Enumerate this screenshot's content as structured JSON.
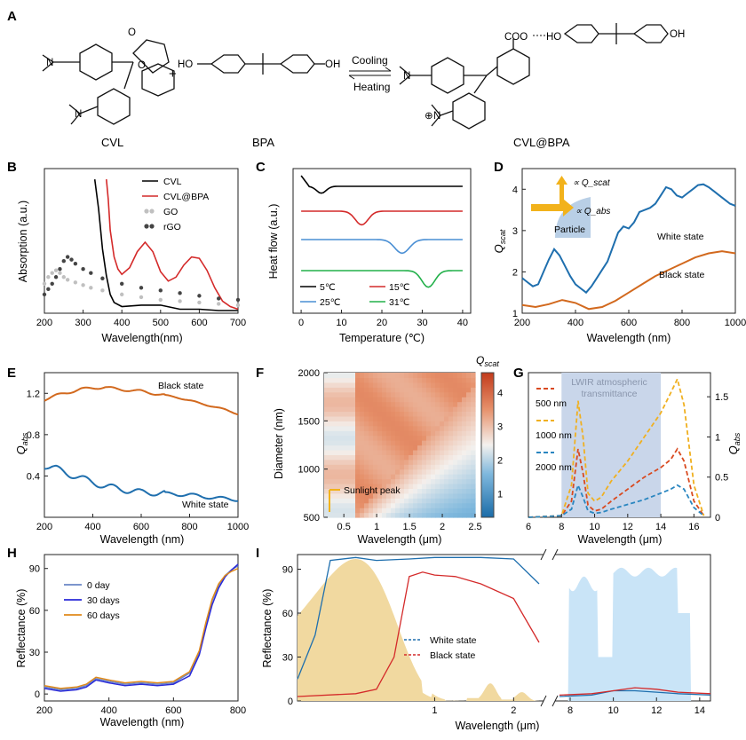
{
  "figure": {
    "panels": [
      "A",
      "B",
      "C",
      "D",
      "E",
      "F",
      "G",
      "H",
      "I"
    ]
  },
  "reaction": {
    "reactant1": "CVL",
    "reactant2": "BPA",
    "product": "CVL@BPA",
    "plus": "+",
    "forward": "Cooling",
    "reverse": "Heating",
    "atoms": {
      "o": "O",
      "n": "N",
      "ho": "HO",
      "oh": "OH",
      "coo": "COO",
      "nplus": "N",
      "plus_sign": "⊕"
    }
  },
  "chart_data": [
    {
      "panel": "B",
      "type": "line",
      "xlabel": "Wavelength(nm)",
      "ylabel": "Absorption (a.u.)",
      "xlim": [
        200,
        700
      ],
      "xticks": [
        200,
        300,
        400,
        500,
        600,
        700
      ],
      "legend": [
        "CVL",
        "CVL@BPA",
        "GO",
        "rGO"
      ],
      "series": [
        {
          "name": "CVL",
          "color": "#000000",
          "style": "line",
          "x": [
            330,
            340,
            350,
            360,
            370,
            380,
            400,
            450,
            500,
            550,
            600,
            650,
            700
          ],
          "y": [
            1.0,
            0.78,
            0.48,
            0.28,
            0.14,
            0.08,
            0.05,
            0.06,
            0.06,
            0.03,
            0.03,
            0.02,
            0.02
          ]
        },
        {
          "name": "CVL@BPA",
          "color": "#d42a2a",
          "style": "line",
          "x": [
            360,
            365,
            370,
            380,
            390,
            400,
            420,
            440,
            460,
            480,
            500,
            520,
            540,
            560,
            580,
            600,
            620,
            640,
            660,
            680,
            700
          ],
          "y": [
            1.0,
            0.85,
            0.62,
            0.42,
            0.33,
            0.29,
            0.34,
            0.46,
            0.53,
            0.46,
            0.31,
            0.24,
            0.27,
            0.36,
            0.42,
            0.41,
            0.32,
            0.19,
            0.09,
            0.05,
            0.03
          ]
        },
        {
          "name": "GO",
          "color": "#c0c0c0",
          "style": "markers",
          "x": [
            200,
            210,
            220,
            230,
            240,
            250,
            260,
            280,
            300,
            320,
            350,
            400,
            450,
            500,
            550,
            600,
            650,
            700
          ],
          "y": [
            0.22,
            0.27,
            0.3,
            0.32,
            0.3,
            0.27,
            0.25,
            0.23,
            0.21,
            0.19,
            0.17,
            0.14,
            0.12,
            0.1,
            0.09,
            0.08,
            0.07,
            0.06
          ]
        },
        {
          "name": "rGO",
          "color": "#444444",
          "style": "markers",
          "x": [
            200,
            210,
            220,
            230,
            240,
            250,
            260,
            270,
            280,
            300,
            320,
            350,
            400,
            450,
            500,
            550,
            600,
            650,
            700
          ],
          "y": [
            0.14,
            0.18,
            0.22,
            0.27,
            0.33,
            0.39,
            0.42,
            0.4,
            0.37,
            0.33,
            0.3,
            0.26,
            0.22,
            0.19,
            0.17,
            0.15,
            0.13,
            0.11,
            0.1
          ]
        }
      ]
    },
    {
      "panel": "C",
      "type": "line",
      "xlabel": "Temperature (℃)",
      "ylabel": "Heat flow (a.u.)",
      "xlim": [
        -2,
        42
      ],
      "xticks": [
        0,
        10,
        20,
        30,
        40
      ],
      "legend": [
        "5℃",
        "15℃",
        "25℃",
        "31℃"
      ],
      "series": [
        {
          "name": "5℃",
          "color": "#000000",
          "offset": 4,
          "peak": 5,
          "depth": 0.35,
          "width": 1.2
        },
        {
          "name": "15℃",
          "color": "#d42a2a",
          "offset": 3,
          "peak": 15,
          "depth": 0.7,
          "width": 1.6
        },
        {
          "name": "25℃",
          "color": "#4a8fd4",
          "offset": 2,
          "peak": 25,
          "depth": 0.7,
          "width": 1.8
        },
        {
          "name": "31℃",
          "color": "#22b04a",
          "offset": 1,
          "peak": 31.5,
          "depth": 0.85,
          "width": 1.6
        }
      ]
    },
    {
      "panel": "D",
      "type": "line",
      "xlabel": "Wavelength (nm)",
      "ylabel": "Q_scat",
      "xlim": [
        200,
        1000
      ],
      "ylim": [
        1,
        4.5
      ],
      "xticks": [
        200,
        400,
        600,
        800,
        1000
      ],
      "yticks": [
        1,
        2,
        3,
        4
      ],
      "annotations": [
        "White state",
        "Black state",
        "Particle",
        "∝ Q_scat",
        "∝ Q_abs"
      ],
      "series": [
        {
          "name": "White state",
          "color": "#1f6fae",
          "x": [
            200,
            220,
            240,
            260,
            280,
            300,
            320,
            340,
            360,
            380,
            400,
            420,
            440,
            460,
            480,
            500,
            520,
            540,
            560,
            580,
            600,
            620,
            640,
            660,
            680,
            700,
            720,
            740,
            760,
            780,
            800,
            820,
            840,
            860,
            880,
            900,
            920,
            940,
            960,
            980,
            1000
          ],
          "y": [
            1.85,
            1.75,
            1.65,
            1.7,
            2.0,
            2.3,
            2.55,
            2.4,
            2.15,
            1.9,
            1.7,
            1.6,
            1.5,
            1.65,
            1.85,
            2.05,
            2.25,
            2.6,
            2.95,
            3.1,
            3.05,
            3.2,
            3.45,
            3.5,
            3.55,
            3.65,
            3.85,
            4.05,
            4.0,
            3.85,
            3.8,
            3.9,
            4.0,
            4.1,
            4.12,
            4.05,
            3.95,
            3.85,
            3.75,
            3.65,
            3.6
          ]
        },
        {
          "name": "Black state",
          "color": "#d2691e",
          "x": [
            200,
            250,
            300,
            350,
            400,
            450,
            500,
            550,
            600,
            650,
            700,
            750,
            800,
            850,
            900,
            950,
            1000
          ],
          "y": [
            1.2,
            1.15,
            1.22,
            1.32,
            1.25,
            1.1,
            1.15,
            1.3,
            1.5,
            1.7,
            1.9,
            2.05,
            2.2,
            2.35,
            2.45,
            2.5,
            2.45
          ]
        }
      ]
    },
    {
      "panel": "E",
      "type": "line",
      "xlabel": "Wavelength (nm)",
      "ylabel": "Q_abs",
      "xlim": [
        200,
        1000
      ],
      "ylim": [
        0,
        1.4
      ],
      "xticks": [
        200,
        400,
        600,
        800,
        1000
      ],
      "yticks": [
        0.4,
        0.8,
        1.2
      ],
      "annotations": [
        "Black state",
        "White state"
      ],
      "series": [
        {
          "name": "Black state",
          "color": "#d2691e",
          "x": [
            200,
            250,
            300,
            350,
            400,
            450,
            500,
            550,
            600,
            650,
            700,
            750,
            800,
            850,
            900,
            950,
            1000
          ],
          "y": [
            1.14,
            1.18,
            1.21,
            1.24,
            1.25,
            1.26,
            1.24,
            1.23,
            1.22,
            1.2,
            1.18,
            1.16,
            1.13,
            1.1,
            1.07,
            1.04,
            1.0
          ]
        },
        {
          "name": "White state",
          "color": "#1f6fae",
          "x": [
            200,
            250,
            300,
            350,
            400,
            450,
            500,
            550,
            600,
            650,
            700,
            750,
            800,
            850,
            900,
            950,
            1000
          ],
          "y": [
            0.5,
            0.47,
            0.42,
            0.38,
            0.34,
            0.3,
            0.28,
            0.26,
            0.24,
            0.24,
            0.23,
            0.22,
            0.22,
            0.2,
            0.19,
            0.18,
            0.17
          ]
        }
      ]
    },
    {
      "panel": "F",
      "type": "heatmap",
      "xlabel": "Wavelength (μm)",
      "ylabel": "Diameter (nm)",
      "colorbar_label": "Q_scat",
      "xlim": [
        0.2,
        2.5
      ],
      "ylim": [
        500,
        2000
      ],
      "xticks": [
        0.5,
        1,
        1.5,
        2,
        2.5
      ],
      "yticks": [
        500,
        1000,
        1500,
        2000
      ],
      "cbar_ticks": [
        1,
        2,
        3,
        4
      ],
      "annotation": "Sunlight peak"
    },
    {
      "panel": "G",
      "type": "line",
      "xlabel": "Wavelength (μm)",
      "ylabel": "Q_abs",
      "xlim": [
        6,
        17
      ],
      "ylim": [
        0,
        1.8
      ],
      "xticks": [
        6,
        8,
        10,
        12,
        14,
        16
      ],
      "yticks": [
        0,
        0.5,
        1,
        1.5
      ],
      "band_label": [
        "LWIR atmospheric",
        "transmittance"
      ],
      "band": [
        8,
        14
      ],
      "legend": [
        "500 nm",
        "1000 nm",
        "2000 nm"
      ],
      "series": [
        {
          "name": "500 nm",
          "color": "#d9491f",
          "x": [
            6,
            8,
            8.6,
            9,
            9.3,
            9.6,
            10,
            10.4,
            11,
            12,
            13,
            14,
            14.6,
            15,
            15.4,
            16,
            16.6
          ],
          "y": [
            0,
            0.02,
            0.2,
            0.85,
            0.55,
            0.15,
            0.08,
            0.1,
            0.2,
            0.35,
            0.5,
            0.62,
            0.72,
            0.85,
            0.7,
            0.2,
            0.02
          ]
        },
        {
          "name": "1000 nm",
          "color": "#f0b020",
          "x": [
            6,
            8,
            8.6,
            9,
            9.3,
            9.6,
            10,
            10.4,
            11,
            12,
            13,
            14,
            14.6,
            15,
            15.4,
            16,
            16.6
          ],
          "y": [
            0,
            0.02,
            0.4,
            1.45,
            1.0,
            0.3,
            0.2,
            0.25,
            0.45,
            0.7,
            1.0,
            1.3,
            1.55,
            1.72,
            1.4,
            0.4,
            0.02
          ]
        },
        {
          "name": "2000 nm",
          "color": "#2a86c0",
          "x": [
            6,
            8,
            8.6,
            9,
            9.3,
            9.6,
            10,
            10.4,
            11,
            12,
            13,
            14,
            14.6,
            15,
            15.4,
            16,
            16.6
          ],
          "y": [
            0,
            0.02,
            0.1,
            0.4,
            0.25,
            0.08,
            0.05,
            0.06,
            0.1,
            0.16,
            0.22,
            0.3,
            0.35,
            0.4,
            0.35,
            0.12,
            0.02
          ]
        }
      ]
    },
    {
      "panel": "H",
      "type": "line",
      "xlabel": "Wavelength (nm)",
      "ylabel": "Reflectance (%)",
      "xlim": [
        200,
        800
      ],
      "ylim": [
        -5,
        100
      ],
      "xticks": [
        200,
        400,
        600,
        800
      ],
      "yticks": [
        0,
        30,
        60,
        90
      ],
      "legend": [
        "0 day",
        "30 days",
        "60 days"
      ],
      "series": [
        {
          "name": "0 day",
          "color": "#6a86c6",
          "x": [
            200,
            250,
            300,
            330,
            360,
            400,
            450,
            500,
            550,
            600,
            650,
            680,
            700,
            720,
            740,
            760,
            780,
            800
          ],
          "y": [
            5,
            3,
            4,
            6,
            11,
            9,
            7,
            8,
            7,
            8,
            15,
            30,
            50,
            67,
            78,
            85,
            89,
            92
          ]
        },
        {
          "name": "30 days",
          "color": "#2a2ad8",
          "x": [
            200,
            250,
            300,
            330,
            360,
            400,
            450,
            500,
            550,
            600,
            650,
            680,
            700,
            720,
            740,
            760,
            780,
            800
          ],
          "y": [
            4,
            2,
            3,
            5,
            10,
            8,
            6,
            7,
            6,
            7,
            13,
            28,
            47,
            64,
            76,
            84,
            89,
            93
          ]
        },
        {
          "name": "60 days",
          "color": "#e08a1a",
          "x": [
            200,
            250,
            300,
            330,
            360,
            400,
            450,
            500,
            550,
            600,
            650,
            680,
            700,
            720,
            740,
            760,
            780,
            800
          ],
          "y": [
            6,
            4,
            5,
            7,
            12,
            10,
            8,
            9,
            8,
            9,
            16,
            31,
            51,
            68,
            79,
            85,
            88,
            90
          ]
        }
      ]
    },
    {
      "panel": "I",
      "type": "line",
      "xlabel": "Wavelength (μm)",
      "ylabel": "Reflectance (%)",
      "ylim": [
        0,
        100
      ],
      "xticks_left": [
        1,
        2
      ],
      "xticks_right": [
        8,
        10,
        12,
        14
      ],
      "yticks": [
        0,
        30,
        60,
        90
      ],
      "legend": [
        "White state",
        "Black state"
      ],
      "series": [
        {
          "name": "White state",
          "color": "#1f6fae",
          "x": [
            0.3,
            0.35,
            0.4,
            0.5,
            0.6,
            0.8,
            1.0,
            1.5,
            2.0,
            2.5
          ],
          "y": [
            15,
            45,
            96,
            98,
            96,
            97,
            98,
            98,
            97,
            80
          ],
          "x_ir": [
            7.5,
            9,
            10,
            11,
            12,
            13,
            14.5
          ],
          "y_ir": [
            3,
            4,
            7,
            7,
            6,
            5,
            4
          ]
        },
        {
          "name": "Black state",
          "color": "#d42a2a",
          "x": [
            0.3,
            0.5,
            0.6,
            0.7,
            0.8,
            0.9,
            1.0,
            1.2,
            1.5,
            2.0,
            2.5
          ],
          "y": [
            3,
            5,
            8,
            30,
            85,
            88,
            86,
            85,
            80,
            70,
            40
          ],
          "x_ir": [
            7.5,
            9,
            10,
            11,
            12,
            13,
            14.5
          ],
          "y_ir": [
            4,
            5,
            7,
            9,
            8,
            6,
            5
          ]
        }
      ]
    }
  ]
}
